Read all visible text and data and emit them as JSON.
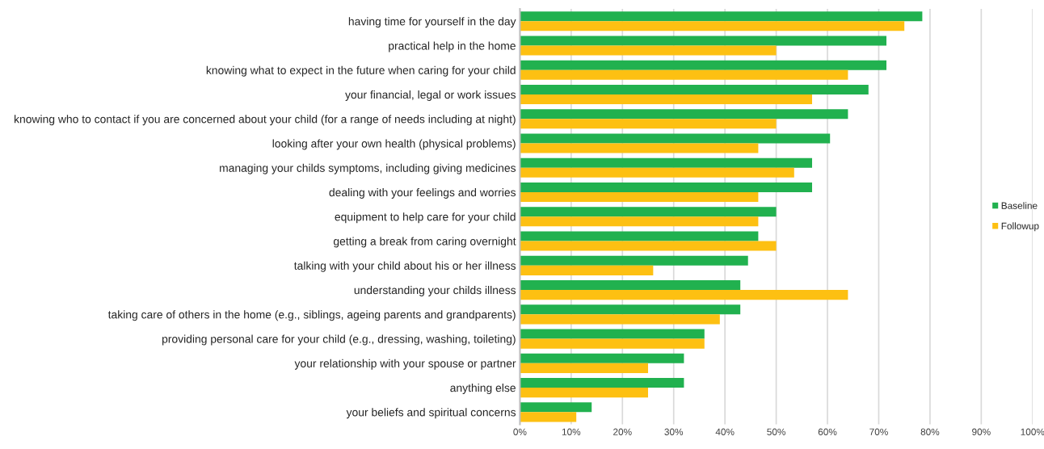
{
  "chart_data": {
    "type": "bar",
    "orientation": "horizontal",
    "categories": [
      "having time for yourself in the day",
      "practical help in the home",
      "knowing what to expect in the future when caring for your child",
      "your financial, legal or work issues",
      "knowing who to contact if you are concerned about your child (for a range of needs including at night)",
      "looking after your own health (physical problems)",
      "managing your childs symptoms, including giving medicines",
      "dealing with your feelings and worries",
      "equipment to help care for your child",
      "getting a break from caring overnight",
      "talking with your child about his or her illness",
      "understanding your childs illness",
      "taking care of others in the home (e.g., siblings, ageing parents and grandparents)",
      "providing personal care for your child (e.g., dressing, washing, toileting)",
      "your relationship with your spouse or partner",
      "anything else",
      "your beliefs and spiritual concerns"
    ],
    "series": [
      {
        "name": "Baseline",
        "color": "#21b14f",
        "values": [
          78.5,
          71.5,
          71.5,
          68,
          64,
          60.5,
          57,
          57,
          50,
          46.5,
          44.5,
          43,
          43,
          36,
          32,
          32,
          14
        ]
      },
      {
        "name": "Followup",
        "color": "#fdc012",
        "values": [
          75,
          50,
          64,
          57,
          50,
          46.5,
          53.5,
          46.5,
          46.5,
          50,
          26,
          64,
          39,
          36,
          25,
          25,
          11
        ]
      }
    ],
    "xlim": [
      0,
      100
    ],
    "xticks": [
      {
        "value": 0,
        "label": "0%"
      },
      {
        "value": 10,
        "label": "10%"
      },
      {
        "value": 20,
        "label": "20%"
      },
      {
        "value": 30,
        "label": "30%"
      },
      {
        "value": 40,
        "label": "40%"
      },
      {
        "value": 50,
        "label": "50%"
      },
      {
        "value": 60,
        "label": "60%"
      },
      {
        "value": 70,
        "label": "70%"
      },
      {
        "value": 80,
        "label": "80%"
      },
      {
        "value": 90,
        "label": "90%"
      },
      {
        "value": 100,
        "label": "100%"
      }
    ],
    "grid": "x",
    "legend": "right"
  }
}
